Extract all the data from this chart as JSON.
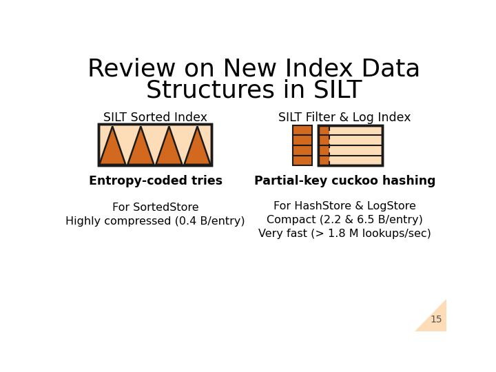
{
  "title_line1": "Review on New Index Data",
  "title_line2": "Structures in SILT",
  "title_fontsize": 26,
  "bg_color": "#ffffff",
  "left_label": "SILT Sorted Index",
  "right_label": "SILT Filter & Log Index",
  "left_sublabel": "Entropy-coded tries",
  "right_sublabel": "Partial-key cuckoo hashing",
  "left_desc1": "For SortedStore",
  "left_desc2": "Highly compressed (0.4 B/entry)",
  "right_desc1": "For HashStore & LogStore",
  "right_desc2": "Compact (2.2 & 6.5 B/entry)",
  "right_desc3": "Very fast (> 1.8 M lookups/sec)",
  "page_num": "15",
  "orange_dark": "#d2691e",
  "orange_light": "#fddcb8",
  "outline_color": "#1a1a1a",
  "corner_color": "#fddcb8"
}
